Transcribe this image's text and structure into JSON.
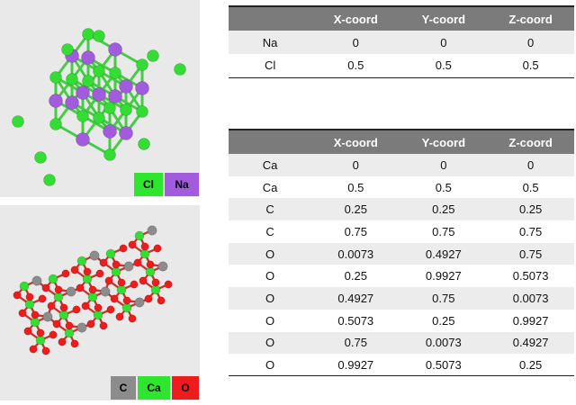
{
  "nacl": {
    "legend": [
      {
        "label": "Cl",
        "color": "#2ee62e"
      },
      {
        "label": "Na",
        "color": "#a25bdc"
      }
    ],
    "table": {
      "headers": [
        "",
        "X-coord",
        "Y-coord",
        "Z-coord"
      ],
      "rows": [
        [
          "Na",
          "0",
          "0",
          "0"
        ],
        [
          "Cl",
          "0.5",
          "0.5",
          "0.5"
        ]
      ]
    }
  },
  "caco3": {
    "legend": [
      {
        "label": "C",
        "color": "#8c8c8c"
      },
      {
        "label": "Ca",
        "color": "#2ee62e"
      },
      {
        "label": "O",
        "color": "#ee1c1c"
      }
    ],
    "table": {
      "headers": [
        "",
        "X-coord",
        "Y-coord",
        "Z-coord"
      ],
      "rows": [
        [
          "Ca",
          "0",
          "0",
          "0"
        ],
        [
          "Ca",
          "0.5",
          "0.5",
          "0.5"
        ],
        [
          "C",
          "0.25",
          "0.25",
          "0.25"
        ],
        [
          "C",
          "0.75",
          "0.75",
          "0.75"
        ],
        [
          "O",
          "0.0073",
          "0.4927",
          "0.75"
        ],
        [
          "O",
          "0.25",
          "0.9927",
          "0.5073"
        ],
        [
          "O",
          "0.4927",
          "0.75",
          "0.0073"
        ],
        [
          "O",
          "0.5073",
          "0.25",
          "0.9927"
        ],
        [
          "O",
          "0.75",
          "0.0073",
          "0.4927"
        ],
        [
          "O",
          "0.9927",
          "0.5073",
          "0.25"
        ]
      ]
    }
  }
}
